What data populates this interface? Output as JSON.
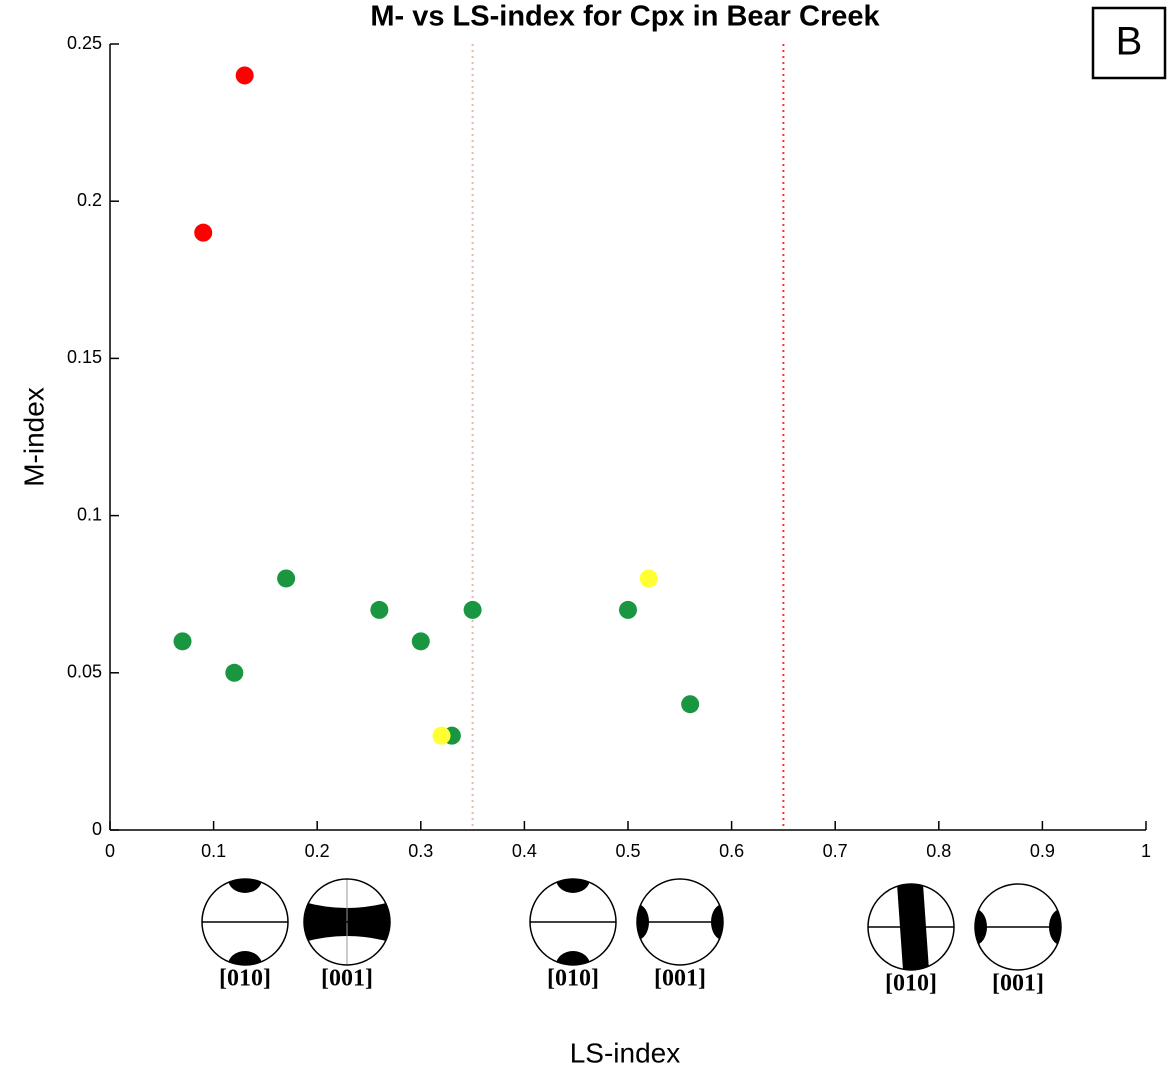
{
  "chart_data": {
    "type": "scatter",
    "title": "M- vs LS-index for Cpx in Bear Creek",
    "x_label": "LS-index",
    "y_label": "M-index",
    "panel_label": "B",
    "series": [
      {
        "color": "#ff0000",
        "x": [
          0.13,
          0.09
        ],
        "values": [
          0.24,
          0.19
        ]
      },
      {
        "color": "#1a9641",
        "x": [
          0.07,
          0.12,
          0.17,
          0.26,
          0.3,
          0.35,
          0.33,
          0.5,
          0.56
        ],
        "values": [
          0.06,
          0.05,
          0.08,
          0.07,
          0.06,
          0.07,
          0.03,
          0.07,
          0.04
        ]
      },
      {
        "color": "#ffff33",
        "x": [
          0.32,
          0.52
        ],
        "values": [
          0.03,
          0.08
        ]
      }
    ],
    "reference_lines": [
      {
        "x": 0.35,
        "color": "#f4b6a8"
      },
      {
        "x": 0.65,
        "color": "#ff3030"
      }
    ],
    "pole_figure_labels": [
      "[010]",
      "[001]",
      "[010]",
      "[001]",
      "[010]",
      "[001]"
    ],
    "xlim": [
      0,
      1
    ],
    "xticks": [
      0,
      0.1,
      0.2,
      0.3,
      0.4,
      0.5,
      0.6,
      0.7,
      0.8,
      0.9,
      1
    ],
    "ylim": [
      0,
      0.25
    ],
    "yticks": [
      0,
      0.05,
      0.1,
      0.15,
      0.2,
      0.25
    ]
  }
}
